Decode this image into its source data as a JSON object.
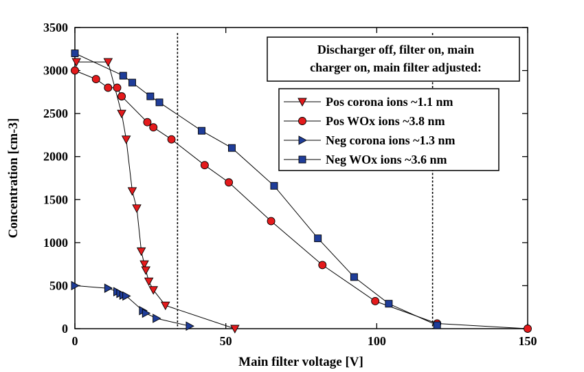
{
  "chart_data": {
    "type": "scatter",
    "xlabel": "Main filter voltage [V]",
    "ylabel": "Concentration  [cm-3]",
    "xlim": [
      0,
      150
    ],
    "ylim": [
      0,
      3500
    ],
    "xticks": [
      0,
      50,
      100,
      150
    ],
    "yticks": [
      0,
      500,
      1000,
      1500,
      2000,
      2500,
      3000,
      3500
    ],
    "xtick_labels": [
      "0",
      "50",
      "100",
      "150"
    ],
    "ytick_labels": [
      "0",
      "500",
      "1000",
      "1500",
      "2000",
      "2500",
      "3000",
      "3500"
    ],
    "grid": false,
    "annotation": {
      "lines": [
        "Discharger off, filter on, main",
        "charger on, main filter adjusted:"
      ]
    },
    "legend_position": "top-right",
    "vertical_lines": [
      {
        "x": 34,
        "style": "dashed"
      },
      {
        "x": 118.5,
        "style": "dashed"
      }
    ],
    "series": [
      {
        "name": "Pos corona ions ~1.1 nm",
        "marker": "triangle-down",
        "color": "#e41a1c",
        "points": [
          [
            0.5,
            3100
          ],
          [
            11,
            3100
          ],
          [
            15.5,
            2500
          ],
          [
            17,
            2200
          ],
          [
            19,
            1600
          ],
          [
            20.5,
            1400
          ],
          [
            22,
            900
          ],
          [
            23,
            750
          ],
          [
            23.5,
            680
          ],
          [
            24.5,
            550
          ],
          [
            26,
            450
          ],
          [
            30,
            270
          ],
          [
            53,
            0
          ]
        ]
      },
      {
        "name": "Pos WOx ions ~3.8 nm",
        "marker": "circle",
        "color": "#e41a1c",
        "points": [
          [
            0,
            3000
          ],
          [
            7,
            2900
          ],
          [
            11,
            2800
          ],
          [
            14,
            2800
          ],
          [
            15.5,
            2700
          ],
          [
            24,
            2400
          ],
          [
            26,
            2340
          ],
          [
            32,
            2200
          ],
          [
            43,
            1900
          ],
          [
            51,
            1700
          ],
          [
            65,
            1250
          ],
          [
            82,
            740
          ],
          [
            99.5,
            320
          ],
          [
            120,
            60
          ],
          [
            150,
            0
          ]
        ]
      },
      {
        "name": "Neg corona ions ~1.3 nm",
        "marker": "triangle-right",
        "color": "#1f3d99",
        "points": [
          [
            0,
            500
          ],
          [
            11,
            470
          ],
          [
            14,
            430
          ],
          [
            15,
            410
          ],
          [
            16,
            390
          ],
          [
            17,
            380
          ],
          [
            22.5,
            210
          ],
          [
            23.5,
            180
          ],
          [
            27,
            120
          ],
          [
            38,
            30
          ]
        ]
      },
      {
        "name": "Neg WOx ions ~3.6 nm",
        "marker": "square",
        "color": "#1f3d99",
        "points": [
          [
            0,
            3200
          ],
          [
            16,
            2940
          ],
          [
            19,
            2860
          ],
          [
            25,
            2700
          ],
          [
            28,
            2630
          ],
          [
            42,
            2300
          ],
          [
            52,
            2100
          ],
          [
            66,
            1660
          ],
          [
            80.5,
            1050
          ],
          [
            92.5,
            600
          ],
          [
            104,
            290
          ],
          [
            120,
            40
          ]
        ]
      }
    ]
  }
}
